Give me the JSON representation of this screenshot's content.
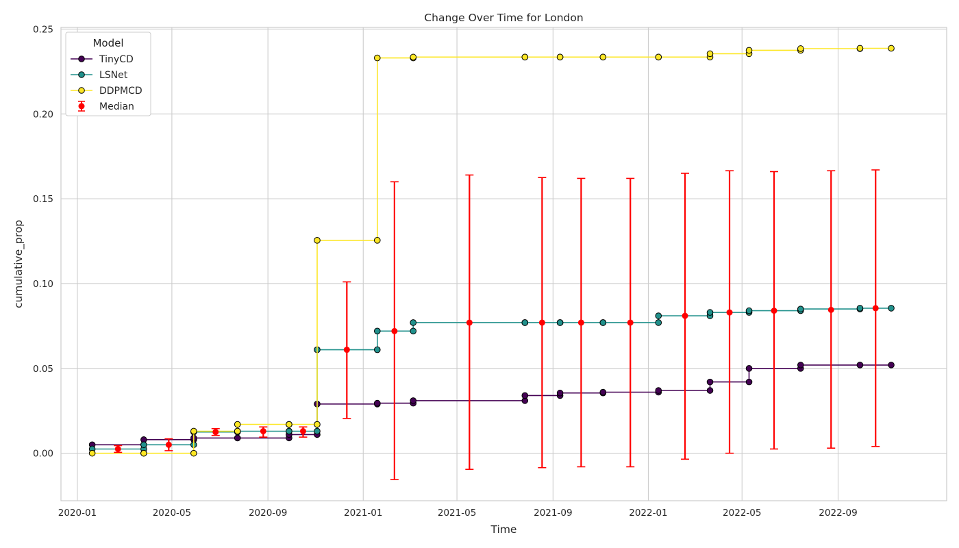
{
  "chart_data": {
    "type": "line",
    "title": "Change Over Time for London",
    "xlabel": "Time",
    "ylabel": "cumulative_prop",
    "xlim": [
      "2019-12-11",
      "2023-01-18"
    ],
    "ylim": [
      -0.028,
      0.251
    ],
    "x_ticks": [
      "2020-01",
      "2020-05",
      "2020-09",
      "2021-01",
      "2021-05",
      "2021-09",
      "2022-01",
      "2022-05",
      "2022-09"
    ],
    "y_ticks": [
      0.0,
      0.05,
      0.1,
      0.15,
      0.2,
      0.25
    ],
    "y_tick_labels": [
      "0.00",
      "0.05",
      "0.10",
      "0.15",
      "0.20",
      "0.25"
    ],
    "grid": true,
    "legend": {
      "title": "Model",
      "placement": "top-left"
    },
    "series": [
      {
        "name": "TinyCD",
        "color": "#440154",
        "points": [
          [
            "2020-01-20",
            0.005
          ],
          [
            "2020-03-26",
            0.005
          ],
          [
            "2020-03-26",
            0.008
          ],
          [
            "2020-05-29",
            0.008
          ],
          [
            "2020-05-29",
            0.009
          ],
          [
            "2020-07-24",
            0.009
          ],
          [
            "2020-07-24",
            0.009
          ],
          [
            "2020-09-28",
            0.009
          ],
          [
            "2020-09-28",
            0.011
          ],
          [
            "2020-11-03",
            0.011
          ],
          [
            "2020-11-03",
            0.029
          ],
          [
            "2021-01-19",
            0.029
          ],
          [
            "2021-01-19",
            0.0295
          ],
          [
            "2021-03-06",
            0.0295
          ],
          [
            "2021-03-06",
            0.031
          ],
          [
            "2021-07-27",
            0.031
          ],
          [
            "2021-07-27",
            0.034
          ],
          [
            "2021-09-10",
            0.034
          ],
          [
            "2021-09-10",
            0.0355
          ],
          [
            "2021-11-04",
            0.0355
          ],
          [
            "2021-11-04",
            0.036
          ],
          [
            "2022-01-14",
            0.036
          ],
          [
            "2022-01-14",
            0.037
          ],
          [
            "2022-03-21",
            0.037
          ],
          [
            "2022-03-21",
            0.042
          ],
          [
            "2022-05-10",
            0.042
          ],
          [
            "2022-05-10",
            0.05
          ],
          [
            "2022-07-15",
            0.05
          ],
          [
            "2022-07-15",
            0.052
          ],
          [
            "2022-09-29",
            0.052
          ],
          [
            "2022-09-29",
            0.052
          ],
          [
            "2022-11-08",
            0.052
          ]
        ]
      },
      {
        "name": "LSNet",
        "color": "#21918c",
        "points": [
          [
            "2020-01-20",
            0.0025
          ],
          [
            "2020-03-26",
            0.0025
          ],
          [
            "2020-03-26",
            0.005
          ],
          [
            "2020-05-29",
            0.005
          ],
          [
            "2020-05-29",
            0.0125
          ],
          [
            "2020-07-24",
            0.0125
          ],
          [
            "2020-07-24",
            0.013
          ],
          [
            "2020-09-28",
            0.013
          ],
          [
            "2020-09-28",
            0.013
          ],
          [
            "2020-11-03",
            0.013
          ],
          [
            "2020-11-03",
            0.061
          ],
          [
            "2021-01-19",
            0.061
          ],
          [
            "2021-01-19",
            0.072
          ],
          [
            "2021-03-06",
            0.072
          ],
          [
            "2021-03-06",
            0.077
          ],
          [
            "2021-07-27",
            0.077
          ],
          [
            "2021-07-27",
            0.077
          ],
          [
            "2021-09-10",
            0.077
          ],
          [
            "2021-09-10",
            0.077
          ],
          [
            "2021-11-04",
            0.077
          ],
          [
            "2021-11-04",
            0.077
          ],
          [
            "2022-01-14",
            0.077
          ],
          [
            "2022-01-14",
            0.081
          ],
          [
            "2022-03-21",
            0.081
          ],
          [
            "2022-03-21",
            0.083
          ],
          [
            "2022-05-10",
            0.083
          ],
          [
            "2022-05-10",
            0.084
          ],
          [
            "2022-07-15",
            0.084
          ],
          [
            "2022-07-15",
            0.085
          ],
          [
            "2022-09-29",
            0.085
          ],
          [
            "2022-09-29",
            0.0855
          ],
          [
            "2022-11-08",
            0.0855
          ]
        ]
      },
      {
        "name": "DDPMCD",
        "color": "#fde725",
        "points": [
          [
            "2020-01-20",
            0.0
          ],
          [
            "2020-03-26",
            0.0
          ],
          [
            "2020-03-26",
            0.0
          ],
          [
            "2020-05-29",
            0.0
          ],
          [
            "2020-05-29",
            0.013
          ],
          [
            "2020-07-24",
            0.013
          ],
          [
            "2020-07-24",
            0.017
          ],
          [
            "2020-09-28",
            0.017
          ],
          [
            "2020-09-28",
            0.017
          ],
          [
            "2020-11-03",
            0.017
          ],
          [
            "2020-11-03",
            0.1255
          ],
          [
            "2021-01-19",
            0.1255
          ],
          [
            "2021-01-19",
            0.233
          ],
          [
            "2021-03-06",
            0.233
          ],
          [
            "2021-03-06",
            0.2335
          ],
          [
            "2021-07-27",
            0.2335
          ],
          [
            "2021-07-27",
            0.2335
          ],
          [
            "2021-09-10",
            0.2335
          ],
          [
            "2021-09-10",
            0.2335
          ],
          [
            "2021-11-04",
            0.2335
          ],
          [
            "2021-11-04",
            0.2335
          ],
          [
            "2022-01-14",
            0.2335
          ],
          [
            "2022-01-14",
            0.2335
          ],
          [
            "2022-03-21",
            0.2335
          ],
          [
            "2022-03-21",
            0.2355
          ],
          [
            "2022-05-10",
            0.2355
          ],
          [
            "2022-05-10",
            0.2375
          ],
          [
            "2022-07-15",
            0.2375
          ],
          [
            "2022-07-15",
            0.2385
          ],
          [
            "2022-09-29",
            0.2385
          ],
          [
            "2022-09-29",
            0.2387
          ],
          [
            "2022-11-08",
            0.2387
          ]
        ]
      }
    ],
    "median": {
      "name": "Median",
      "color": "#ff0000",
      "points": [
        {
          "x": "2020-02-22",
          "y": 0.0025,
          "lo": 0.0005,
          "hi": 0.0045
        },
        {
          "x": "2020-04-27",
          "y": 0.005,
          "lo": 0.0015,
          "hi": 0.0085
        },
        {
          "x": "2020-06-26",
          "y": 0.0125,
          "lo": 0.0105,
          "hi": 0.0145
        },
        {
          "x": "2020-08-26",
          "y": 0.013,
          "lo": 0.0095,
          "hi": 0.0155
        },
        {
          "x": "2020-10-16",
          "y": 0.013,
          "lo": 0.0095,
          "hi": 0.0155
        },
        {
          "x": "2020-12-11",
          "y": 0.061,
          "lo": 0.0205,
          "hi": 0.101
        },
        {
          "x": "2021-02-10",
          "y": 0.072,
          "lo": -0.0155,
          "hi": 0.16
        },
        {
          "x": "2021-05-17",
          "y": 0.077,
          "lo": -0.0095,
          "hi": 0.164
        },
        {
          "x": "2021-08-18",
          "y": 0.077,
          "lo": -0.0085,
          "hi": 0.1625
        },
        {
          "x": "2021-10-07",
          "y": 0.077,
          "lo": -0.008,
          "hi": 0.162
        },
        {
          "x": "2021-12-09",
          "y": 0.077,
          "lo": -0.008,
          "hi": 0.162
        },
        {
          "x": "2022-02-17",
          "y": 0.081,
          "lo": -0.0035,
          "hi": 0.165
        },
        {
          "x": "2022-04-15",
          "y": 0.083,
          "lo": 0.0,
          "hi": 0.1665
        },
        {
          "x": "2022-06-11",
          "y": 0.084,
          "lo": 0.0025,
          "hi": 0.166
        },
        {
          "x": "2022-08-23",
          "y": 0.0845,
          "lo": 0.003,
          "hi": 0.1665
        },
        {
          "x": "2022-10-19",
          "y": 0.0855,
          "lo": 0.004,
          "hi": 0.167
        }
      ]
    }
  }
}
